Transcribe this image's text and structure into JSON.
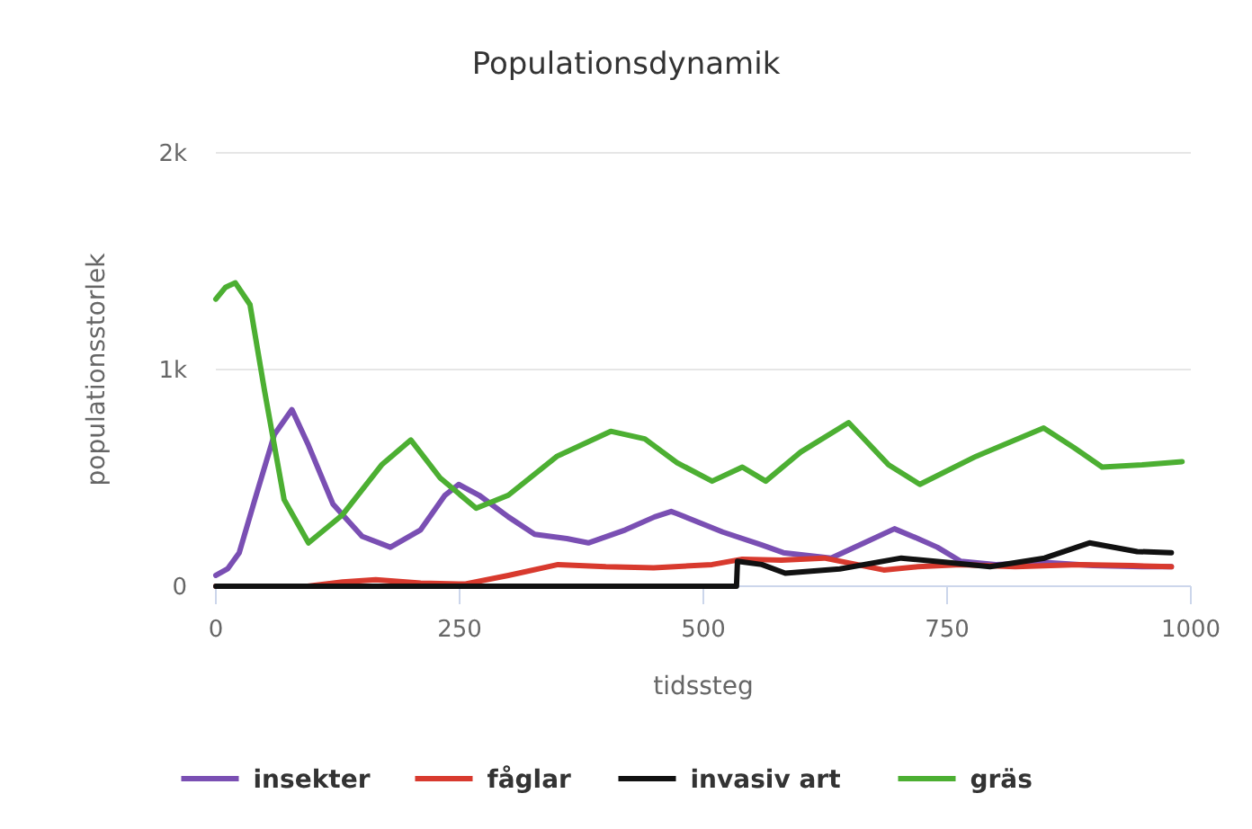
{
  "chart_data": {
    "type": "line",
    "title": "Populationsdynamik",
    "xlabel": "tidssteg",
    "ylabel": "populationsstorlek",
    "xlim": [
      0,
      1000
    ],
    "xticks": [
      0,
      250,
      500,
      750,
      1000
    ],
    "ylim": [
      0,
      2000
    ],
    "yticks": [
      {
        "value": 0,
        "label": "0"
      },
      {
        "value": 1000,
        "label": "1k"
      },
      {
        "value": 2000,
        "label": "2k"
      }
    ],
    "grid": "y",
    "legend": "bottom",
    "marker": "none",
    "line_style": "solid",
    "series": [
      {
        "name": "insekter",
        "color": "#7a4fb3",
        "x": [
          0,
          12,
          24,
          40,
          60,
          78,
          95,
          120,
          150,
          179,
          210,
          235,
          249,
          270,
          300,
          327,
          360,
          382,
          420,
          450,
          467,
          473,
          520,
          560,
          582,
          631,
          665,
          696,
          720,
          740,
          764,
          800,
          850,
          900,
          950,
          980
        ],
        "values": [
          50,
          80,
          155,
          400,
          700,
          815,
          650,
          380,
          230,
          180,
          260,
          420,
          470,
          420,
          320,
          240,
          220,
          200,
          260,
          320,
          345,
          335,
          250,
          190,
          155,
          130,
          200,
          265,
          220,
          180,
          115,
          100,
          110,
          95,
          90,
          90
        ]
      },
      {
        "name": "fåglar",
        "color": "#d83a2e",
        "x": [
          0,
          94,
          130,
          164,
          210,
          255,
          300,
          351,
          400,
          449,
          509,
          540,
          580,
          624,
          685,
          720,
          764,
          820,
          885,
          940,
          980
        ],
        "values": [
          0,
          0,
          20,
          30,
          15,
          10,
          50,
          100,
          90,
          85,
          100,
          125,
          120,
          130,
          75,
          90,
          100,
          90,
          100,
          95,
          90
        ]
      },
      {
        "name": "invasiv art",
        "color": "#111111",
        "x": [
          0,
          534,
          535,
          560,
          584,
          640,
          703,
          750,
          794,
          850,
          896,
          945,
          980
        ],
        "values": [
          0,
          0,
          115,
          100,
          60,
          80,
          130,
          110,
          90,
          130,
          200,
          160,
          155
        ]
      },
      {
        "name": "gräs",
        "color": "#4caf32",
        "x": [
          0,
          10,
          20,
          35,
          50,
          70,
          95,
          130,
          170,
          200,
          230,
          267,
          300,
          350,
          405,
          440,
          473,
          509,
          540,
          564,
          600,
          649,
          690,
          722,
          780,
          849,
          880,
          909,
          950,
          991
        ],
        "values": [
          1325,
          1380,
          1400,
          1300,
          900,
          400,
          200,
          330,
          560,
          675,
          500,
          360,
          420,
          600,
          715,
          680,
          570,
          485,
          550,
          485,
          620,
          755,
          560,
          470,
          600,
          730,
          640,
          550,
          560,
          575
        ]
      }
    ]
  }
}
